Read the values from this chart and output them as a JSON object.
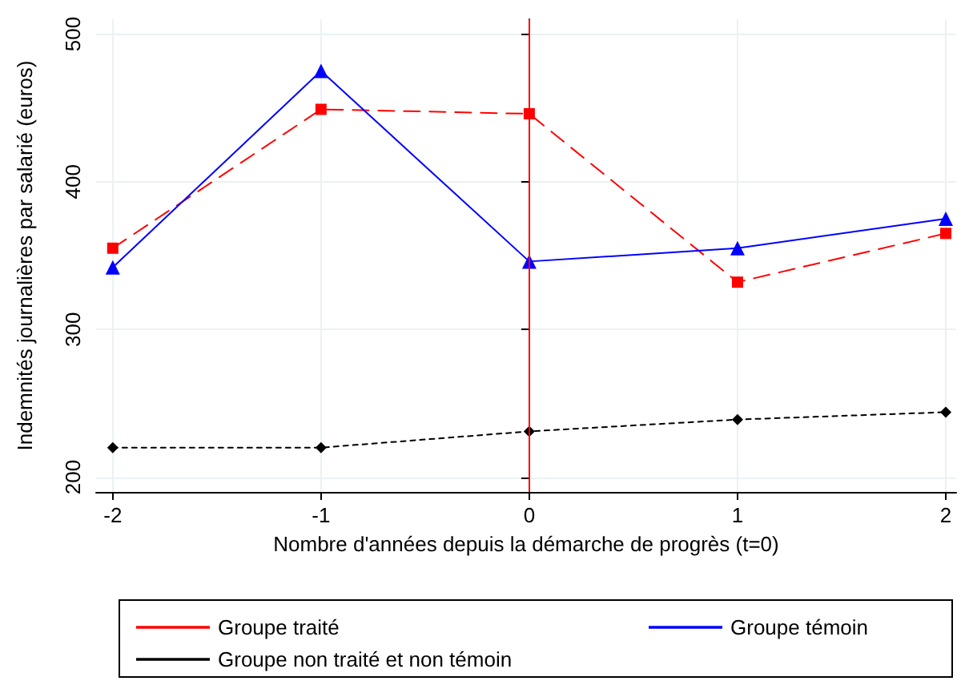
{
  "chart_data": {
    "type": "line",
    "xlabel": "Nombre d'années depuis la démarche de progrès (t=0)",
    "ylabel": "Indemnités journalières par salarié (euros)",
    "x": [
      -2,
      -1,
      0,
      1,
      2
    ],
    "xlim": [
      -2.08,
      2.05
    ],
    "xticks": [
      -2,
      -1,
      0,
      1,
      2
    ],
    "ylim": [
      190,
      510
    ],
    "yticks": [
      200,
      300,
      400,
      500
    ],
    "grid": true,
    "legend": "bottom",
    "ref_lines": [
      {
        "axis": "x",
        "value": 0,
        "color": "#ff0000"
      }
    ],
    "series": [
      {
        "name": "Groupe traité",
        "color": "#ff0000",
        "marker": "square",
        "line_style": "dashed",
        "values": [
          355,
          449,
          446,
          332,
          365
        ]
      },
      {
        "name": "Groupe témoin",
        "color": "#0000ff",
        "marker": "triangle",
        "line_style": "solid",
        "values": [
          342,
          475,
          346,
          355,
          375
        ]
      },
      {
        "name": "Groupe non traité et non témoin",
        "color": "#000000",
        "marker": "diamond",
        "line_style": "dotted",
        "values": [
          220,
          220,
          231,
          239,
          244
        ]
      }
    ]
  }
}
